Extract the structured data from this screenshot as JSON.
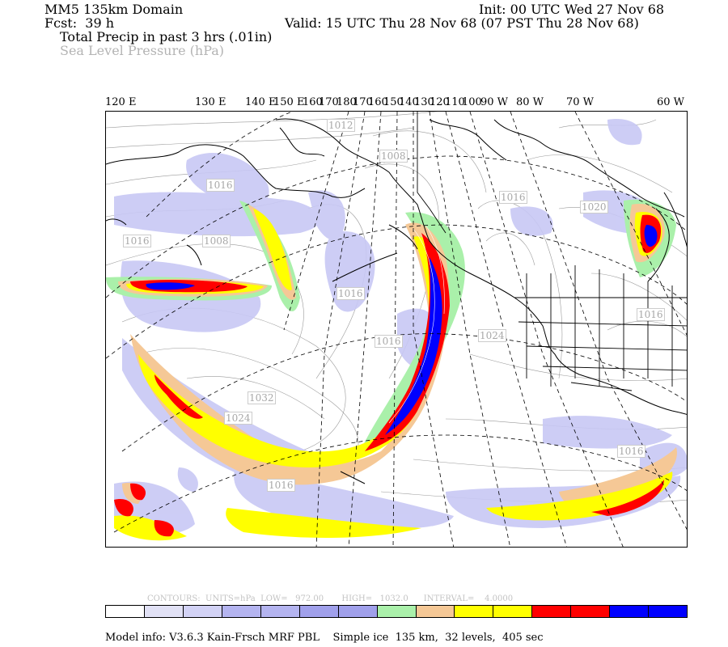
{
  "header": {
    "domain": "MM5 135km Domain",
    "init": "Init: 00 UTC Wed 27 Nov 68",
    "fcst": "Fcst:  39 h",
    "valid": "Valid: 15 UTC Thu 28 Nov 68 (07 PST Thu 28 Nov 68)",
    "field1": "Total Precip in past 3 hrs (.01in)",
    "field2": "Sea Level Pressure (hPa)"
  },
  "longitude_labels": [
    "120 E",
    "130 E",
    "140 E",
    "150 E",
    "160",
    "170",
    "180",
    "170",
    "160",
    "150",
    "140",
    "130",
    "120",
    "110",
    "100",
    "90 W",
    "80 W",
    "70 W",
    "60 W"
  ],
  "pressure_labels": [
    "1012",
    "1008",
    "1016",
    "1020",
    "1016",
    "1008",
    "1016",
    "1016",
    "1024",
    "1016",
    "1032",
    "1024",
    "1016",
    "1016",
    "1016"
  ],
  "contour_info": {
    "contours": "CONTOURS:",
    "units": "UNITS=hPa",
    "low": "LOW=   972.00",
    "high": "HIGH=   1032.0",
    "interval": "INTERVAL=    4.0000"
  },
  "color_scale": [
    "#ffffff",
    "#e1e1f5",
    "#d2d2f5",
    "#b4b4f0",
    "#b4b4f0",
    "#a0a0eb",
    "#a0a0eb",
    "#aaf0aa",
    "#f5c896",
    "#ffff00",
    "#ffff00",
    "#ff0000",
    "#ff0000",
    "#0000ff",
    "#0000ff"
  ],
  "footer": "Model info: V3.6.3 Kain-Frsch MRF PBL    Simple ice  135 km,  32 levels,  405 sec"
}
